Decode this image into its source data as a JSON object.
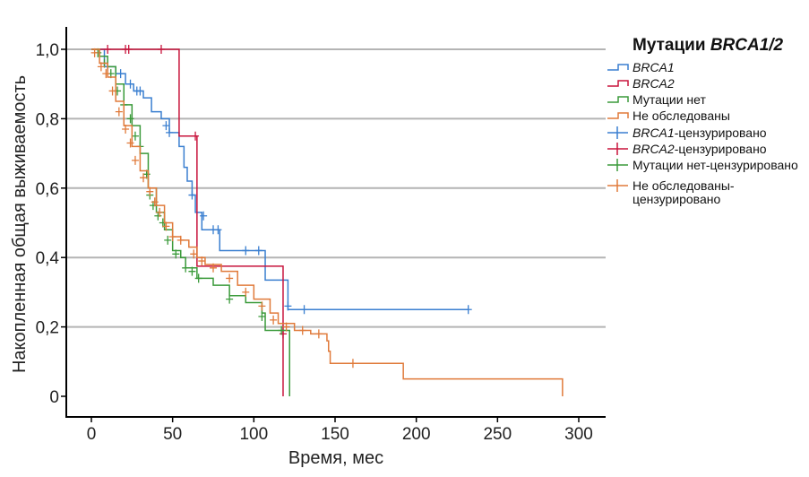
{
  "chart_data": {
    "type": "line",
    "subtype": "kaplan-meier",
    "xlabel": "Время, мес",
    "ylabel": "Накопленная общая выживаемость",
    "xlim": [
      -15,
      315
    ],
    "ylim": [
      0,
      1
    ],
    "xticks": [
      0,
      50,
      100,
      150,
      200,
      250,
      300
    ],
    "xtick_labels": [
      "0",
      "50",
      "100",
      "150",
      "200",
      "250",
      "300"
    ],
    "yticks": [
      0,
      0.2,
      0.4,
      0.6,
      0.8,
      1.0
    ],
    "ytick_labels": [
      "0",
      "0,2",
      "0,4",
      "0,6",
      "0,8",
      "1,0"
    ],
    "grid": "horizontal",
    "legend": {
      "title_plain": "Мутации ",
      "title_italic": "BRCA1/2",
      "placement": "right"
    },
    "series": [
      {
        "name": "BRCA1",
        "italic": true,
        "color": "#3a7fd0",
        "points": [
          [
            0,
            1
          ],
          [
            8,
            0.95
          ],
          [
            15,
            0.93
          ],
          [
            21,
            0.9
          ],
          [
            26,
            0.88
          ],
          [
            32,
            0.86
          ],
          [
            37,
            0.82
          ],
          [
            43,
            0.8
          ],
          [
            48,
            0.76
          ],
          [
            54,
            0.72
          ],
          [
            57,
            0.66
          ],
          [
            59,
            0.62
          ],
          [
            62,
            0.58
          ],
          [
            64,
            0.53
          ],
          [
            68,
            0.48
          ],
          [
            79,
            0.42
          ],
          [
            107,
            0.335
          ],
          [
            121,
            0.25
          ],
          [
            232,
            0.25
          ]
        ],
        "censored": [
          [
            10,
            0.95
          ],
          [
            18,
            0.93
          ],
          [
            24,
            0.9
          ],
          [
            28,
            0.88
          ],
          [
            30,
            0.88
          ],
          [
            46,
            0.78
          ],
          [
            48,
            0.76
          ],
          [
            62,
            0.58
          ],
          [
            69,
            0.52
          ],
          [
            75,
            0.48
          ],
          [
            78,
            0.48
          ],
          [
            95,
            0.42
          ],
          [
            103,
            0.42
          ],
          [
            121,
            0.26
          ],
          [
            131,
            0.25
          ],
          [
            232,
            0.25
          ]
        ]
      },
      {
        "name": "BRCA2",
        "italic": true,
        "color": "#c8143c",
        "points": [
          [
            0,
            1
          ],
          [
            54,
            1
          ],
          [
            54,
            0.75
          ],
          [
            65,
            0.75
          ],
          [
            65,
            0.375
          ],
          [
            118,
            0.375
          ],
          [
            118,
            0
          ]
        ],
        "censored": [
          [
            10,
            1
          ],
          [
            21,
            1
          ],
          [
            23,
            1
          ],
          [
            43,
            1
          ],
          [
            64,
            0.75
          ],
          [
            118,
            0.18
          ]
        ]
      },
      {
        "name": "Мутации нет",
        "italic": false,
        "color": "#3a9a3a",
        "points": [
          [
            0,
            1
          ],
          [
            5,
            0.98
          ],
          [
            10,
            0.95
          ],
          [
            15,
            0.9
          ],
          [
            20,
            0.84
          ],
          [
            25,
            0.78
          ],
          [
            30,
            0.7
          ],
          [
            35,
            0.6
          ],
          [
            40,
            0.53
          ],
          [
            45,
            0.48
          ],
          [
            50,
            0.42
          ],
          [
            55,
            0.4
          ],
          [
            58,
            0.37
          ],
          [
            65,
            0.34
          ],
          [
            75,
            0.32
          ],
          [
            85,
            0.29
          ],
          [
            95,
            0.27
          ],
          [
            105,
            0.24
          ],
          [
            107,
            0.19
          ],
          [
            122,
            0.19
          ],
          [
            122,
            0
          ]
        ],
        "censored": [
          [
            4,
            0.99
          ],
          [
            8,
            0.96
          ],
          [
            12,
            0.93
          ],
          [
            16,
            0.88
          ],
          [
            20,
            0.84
          ],
          [
            24,
            0.8
          ],
          [
            27,
            0.75
          ],
          [
            30,
            0.72
          ],
          [
            34,
            0.64
          ],
          [
            36,
            0.58
          ],
          [
            38,
            0.55
          ],
          [
            41,
            0.52
          ],
          [
            44,
            0.5
          ],
          [
            47,
            0.45
          ],
          [
            52,
            0.41
          ],
          [
            58,
            0.37
          ],
          [
            62,
            0.36
          ],
          [
            66,
            0.34
          ],
          [
            85,
            0.28
          ],
          [
            105,
            0.23
          ],
          [
            117,
            0.19
          ]
        ]
      },
      {
        "name": "Не обследованы",
        "italic": false,
        "color": "#e07a3a",
        "points": [
          [
            0,
            1
          ],
          [
            5,
            0.96
          ],
          [
            10,
            0.92
          ],
          [
            15,
            0.85
          ],
          [
            20,
            0.78
          ],
          [
            25,
            0.72
          ],
          [
            30,
            0.65
          ],
          [
            35,
            0.6
          ],
          [
            40,
            0.55
          ],
          [
            45,
            0.5
          ],
          [
            50,
            0.46
          ],
          [
            55,
            0.45
          ],
          [
            60,
            0.43
          ],
          [
            65,
            0.4
          ],
          [
            70,
            0.38
          ],
          [
            80,
            0.36
          ],
          [
            90,
            0.32
          ],
          [
            100,
            0.28
          ],
          [
            110,
            0.24
          ],
          [
            115,
            0.21
          ],
          [
            125,
            0.19
          ],
          [
            135,
            0.18
          ],
          [
            145,
            0.16
          ],
          [
            146,
            0.13
          ],
          [
            147,
            0.095
          ],
          [
            192,
            0.095
          ],
          [
            192,
            0.05
          ],
          [
            290,
            0.05
          ],
          [
            290,
            0
          ]
        ],
        "censored": [
          [
            2,
            0.99
          ],
          [
            6,
            0.95
          ],
          [
            9,
            0.93
          ],
          [
            13,
            0.88
          ],
          [
            17,
            0.82
          ],
          [
            21,
            0.77
          ],
          [
            24,
            0.73
          ],
          [
            27,
            0.68
          ],
          [
            32,
            0.63
          ],
          [
            36,
            0.59
          ],
          [
            39,
            0.56
          ],
          [
            42,
            0.53
          ],
          [
            46,
            0.49
          ],
          [
            50,
            0.46
          ],
          [
            55,
            0.45
          ],
          [
            63,
            0.41
          ],
          [
            68,
            0.39
          ],
          [
            75,
            0.37
          ],
          [
            85,
            0.34
          ],
          [
            95,
            0.3
          ],
          [
            105,
            0.26
          ],
          [
            112,
            0.22
          ],
          [
            120,
            0.2
          ],
          [
            130,
            0.19
          ],
          [
            140,
            0.18
          ],
          [
            161,
            0.095
          ]
        ]
      }
    ],
    "legend_entries": [
      {
        "italic": "BRCA1",
        "text": "",
        "kind": "line",
        "color": "#3a7fd0"
      },
      {
        "italic": "BRCA2",
        "text": "",
        "kind": "line",
        "color": "#c8143c"
      },
      {
        "italic": "",
        "text": "Мутации нет",
        "kind": "line",
        "color": "#3a9a3a"
      },
      {
        "italic": "",
        "text": "Не обследованы",
        "kind": "line",
        "color": "#e07a3a"
      },
      {
        "italic": "BRCA1",
        "text": "-цензурировано",
        "kind": "cross",
        "color": "#3a7fd0"
      },
      {
        "italic": "BRCA2",
        "text": "-цензурировано",
        "kind": "cross",
        "color": "#c8143c"
      },
      {
        "italic": "",
        "text": "Мутации нет-цензурировано",
        "kind": "cross",
        "color": "#3a9a3a"
      },
      {
        "italic": "",
        "text": "Не обследованы-",
        "text2": "цензурировано",
        "kind": "cross",
        "color": "#e07a3a"
      }
    ]
  }
}
